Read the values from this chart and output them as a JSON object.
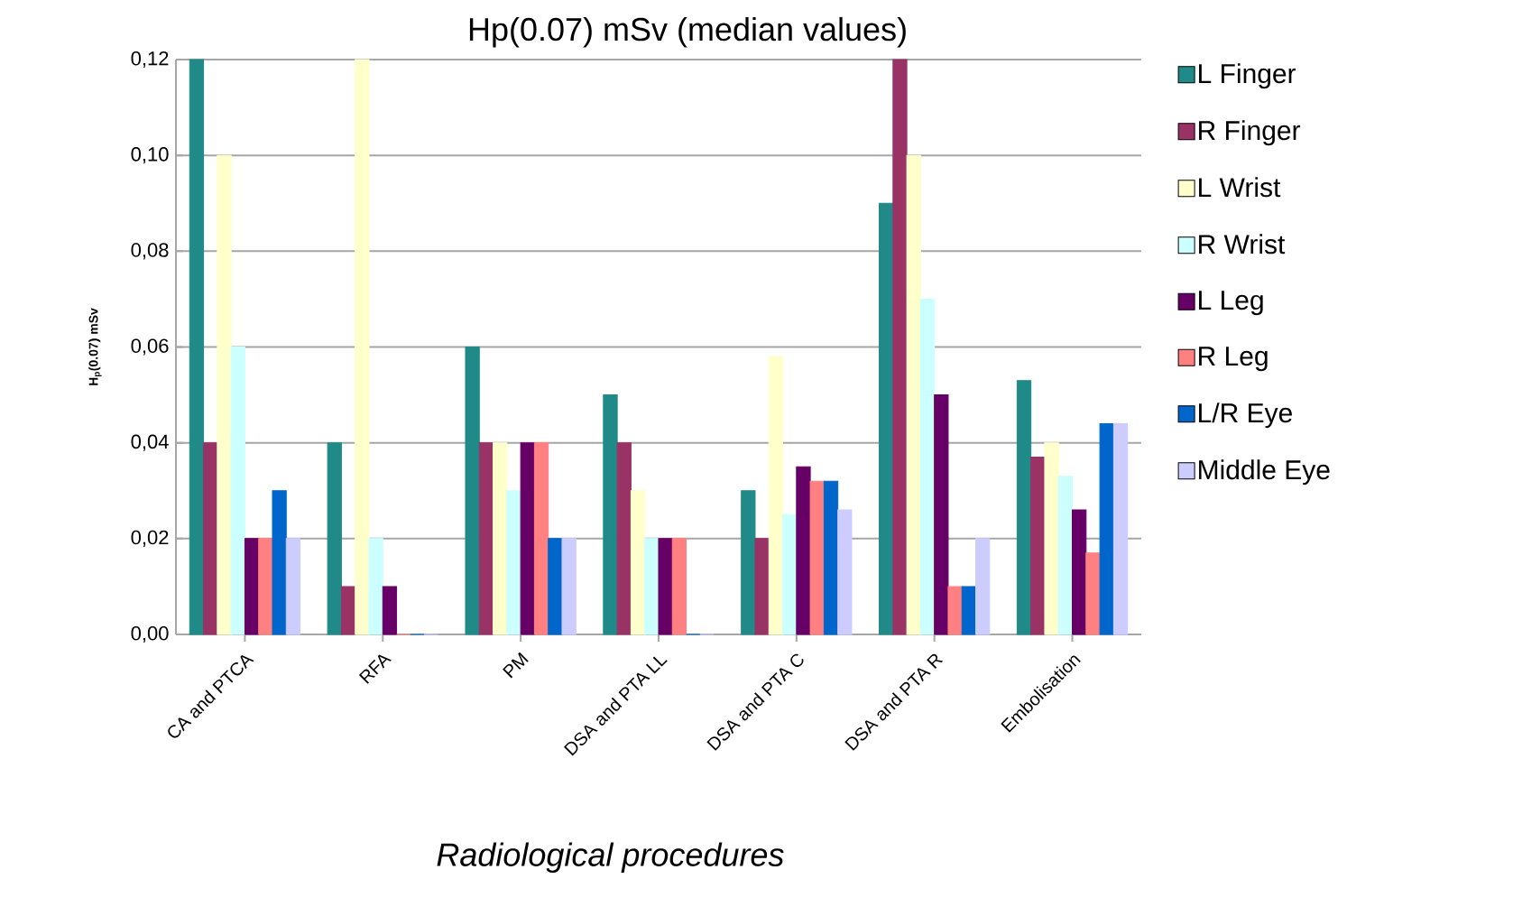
{
  "chart_data": {
    "type": "bar",
    "title": "Hp(0.07) mSv (median values)",
    "xlabel": "Radiological procedures",
    "ylabel": "H$_{p}$(0.07) mSv",
    "categories": [
      "CA and PTCA",
      "RFA",
      "PM",
      "DSA and PTA LL",
      "DSA and PTA C",
      "DSA and PTA R",
      "Embolisation"
    ],
    "series": [
      {
        "name": "L Finger",
        "color": "#1f8a87",
        "values": [
          0.12,
          0.04,
          0.06,
          0.05,
          0.03,
          0.09,
          0.053
        ]
      },
      {
        "name": "R Finger",
        "color": "#993366",
        "values": [
          0.04,
          0.01,
          0.04,
          0.04,
          0.02,
          0.12,
          0.037
        ]
      },
      {
        "name": "L Wrist",
        "color": "#ffffcc",
        "values": [
          0.1,
          0.12,
          0.04,
          0.03,
          0.058,
          0.1,
          0.04
        ]
      },
      {
        "name": "R Wrist",
        "color": "#ccffff",
        "values": [
          0.06,
          0.02,
          0.03,
          0.02,
          0.025,
          0.07,
          0.033
        ]
      },
      {
        "name": "L Leg",
        "color": "#660066",
        "values": [
          0.02,
          0.01,
          0.04,
          0.02,
          0.035,
          0.05,
          0.026
        ]
      },
      {
        "name": "R Leg",
        "color": "#ff8080",
        "values": [
          0.02,
          0.0,
          0.04,
          0.02,
          0.032,
          0.01,
          0.017
        ]
      },
      {
        "name": "L/R Eye",
        "color": "#0066cc",
        "values": [
          0.03,
          0.0,
          0.02,
          0.0,
          0.032,
          0.01,
          0.044
        ]
      },
      {
        "name": "Middle Eye",
        "color": "#ccccff",
        "values": [
          0.02,
          0.0,
          0.02,
          0.0,
          0.026,
          0.02,
          0.044
        ]
      }
    ],
    "ylim": [
      0,
      0.12
    ],
    "yticks": [
      {
        "value": 0,
        "label": "0,00"
      },
      {
        "value": 0.02,
        "label": "0,02"
      },
      {
        "value": 0.04,
        "label": "0,04"
      },
      {
        "value": 0.06,
        "label": "0,06"
      },
      {
        "value": 0.08,
        "label": "0,08"
      },
      {
        "value": 0.1,
        "label": "0,10"
      },
      {
        "value": 0.12,
        "label": "0,12"
      }
    ],
    "grid": "y",
    "legend": "right"
  }
}
